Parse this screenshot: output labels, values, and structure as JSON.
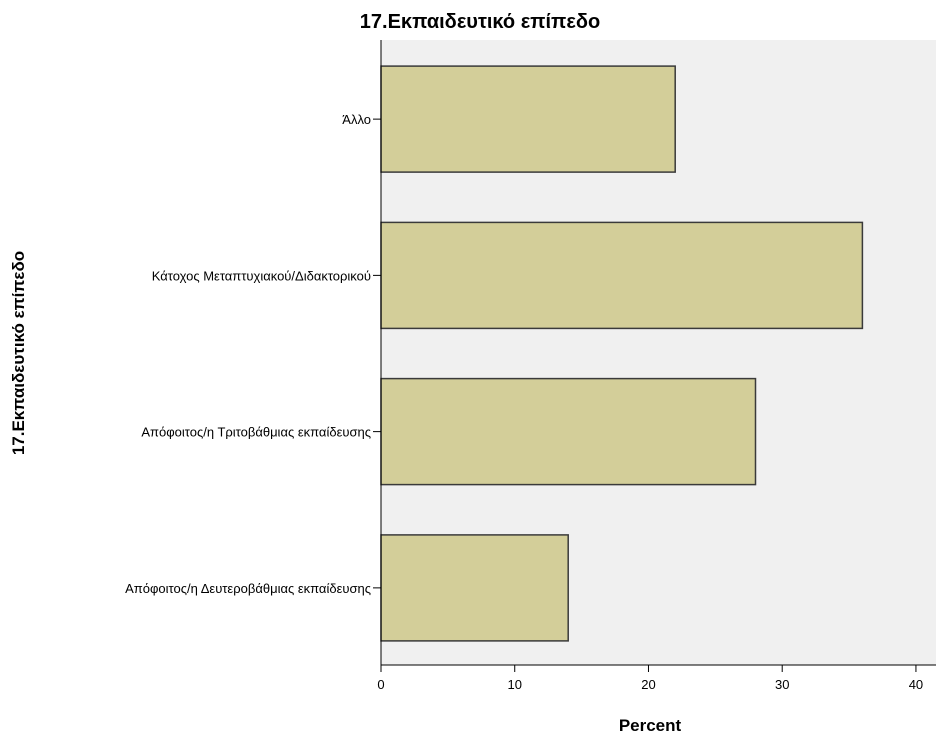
{
  "chart_data": {
    "type": "bar",
    "orientation": "horizontal",
    "title": "17.Εκπαιδευτικό επίπεδο",
    "xlabel": "Percent",
    "ylabel": "17.Εκπαιδευτικό επίπεδο",
    "categories": [
      "Άλλο",
      "Κάτοχος Μεταπτυχιακού/Διδακτορικού",
      "Απόφοιτος/η Τριτοβάθμιας εκπαίδευσης",
      "Απόφοιτος/η Δευτεροβάθμιας εκπαίδευσης"
    ],
    "values": [
      22,
      36,
      28,
      14
    ],
    "xlim": [
      0,
      41.5
    ],
    "xticks": [
      "0",
      "10",
      "20",
      "30",
      "40"
    ],
    "grid": false,
    "legend": "none",
    "colors": {
      "bar_fill": "#d3ce99",
      "bar_stroke": "#3a3a3a",
      "plot_background": "#f0f0f0",
      "axis": "#000000"
    }
  }
}
